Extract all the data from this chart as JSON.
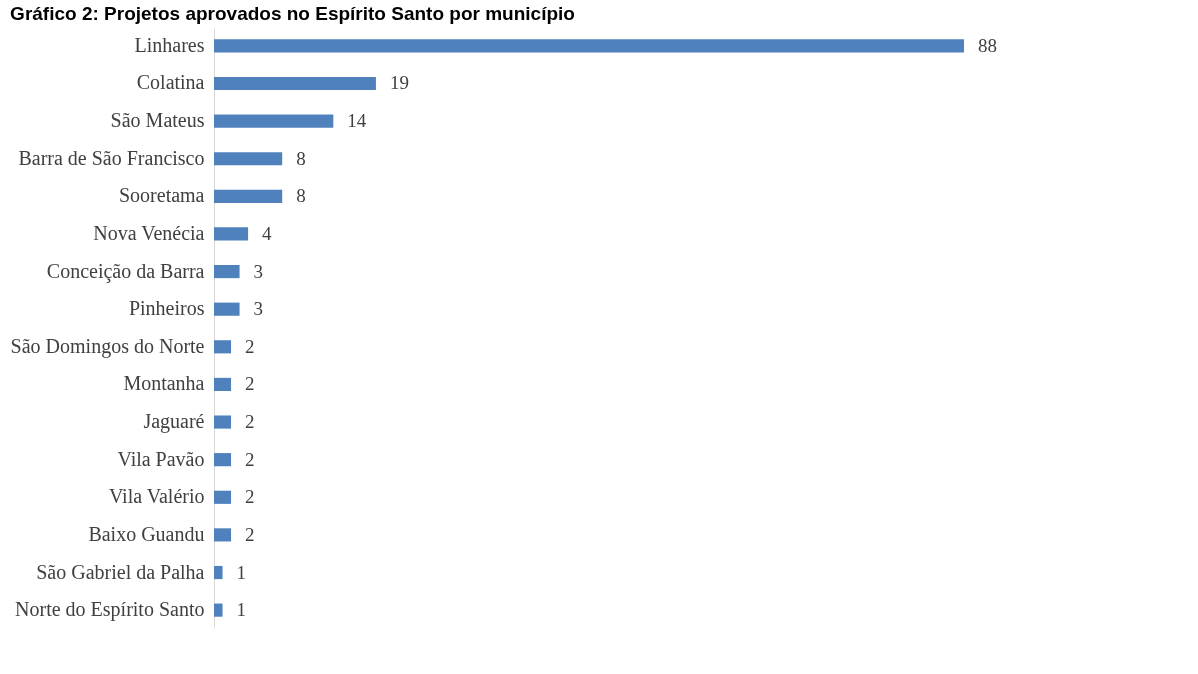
{
  "chart_data": {
    "type": "bar",
    "orientation": "horizontal",
    "title": "Gráfico 2: Projetos aprovados no Espírito Santo por município",
    "categories": [
      "Linhares",
      "Colatina",
      "São Mateus",
      "Barra de São Francisco",
      "Sooretama",
      "Nova Venécia",
      "Conceição da Barra",
      "Pinheiros",
      "São Domingos do Norte",
      "Montanha",
      "Jaguaré",
      "Vila Pavão",
      "Vila Valério",
      "Baixo Guandu",
      "São Gabriel da Palha",
      "Norte do Espírito Santo"
    ],
    "values": [
      88,
      19,
      14,
      8,
      8,
      4,
      3,
      3,
      2,
      2,
      2,
      2,
      2,
      2,
      1,
      1
    ],
    "color": "#4f81bd",
    "data_labels": true
  }
}
